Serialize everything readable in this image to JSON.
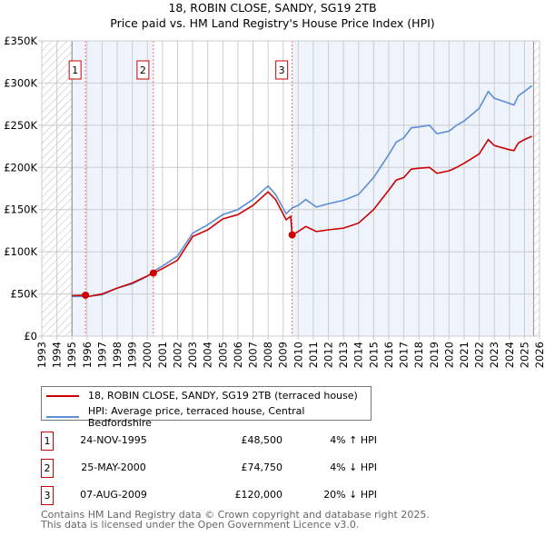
{
  "title": "18, ROBIN CLOSE, SANDY, SG19 2TB",
  "subtitle": "Price paid vs. HM Land Registry's House Price Index (HPI)",
  "chart_data": {
    "type": "line",
    "title": "18, ROBIN CLOSE, SANDY, SG19 2TB",
    "subtitle": "Price paid vs. HM Land Registry's House Price Index (HPI)",
    "xlim": [
      1993,
      2026
    ],
    "ylim": [
      0,
      350000
    ],
    "y_ticks": [
      0,
      50000,
      100000,
      150000,
      200000,
      250000,
      300000,
      350000
    ],
    "y_tick_labels": [
      "£0",
      "£50K",
      "£100K",
      "£150K",
      "£200K",
      "£250K",
      "£300K",
      "£350K"
    ],
    "x_ticks": [
      "1993",
      "1994",
      "1995",
      "1996",
      "1997",
      "1998",
      "1999",
      "2000",
      "2001",
      "2002",
      "2003",
      "2004",
      "2005",
      "2006",
      "2007",
      "2008",
      "2009",
      "2010",
      "2011",
      "2012",
      "2013",
      "2014",
      "2015",
      "2016",
      "2017",
      "2018",
      "2019",
      "2020",
      "2021",
      "2022",
      "2023",
      "2024",
      "2025",
      "2026"
    ],
    "grid": true,
    "legend_placement": "below",
    "shaded_ranges": [
      [
        1995.0,
        2000.4
      ],
      [
        2009.6,
        2025.5
      ]
    ],
    "hatched_ranges": [
      [
        1993,
        1995
      ],
      [
        2025.6,
        2026
      ]
    ],
    "series": [
      {
        "name": "18, ROBIN CLOSE, SANDY, SG19 2TB (terraced house)",
        "color": "#cc0000",
        "x": [
          1995,
          1995.9,
          1996.1,
          1997,
          1998,
          1999,
          2000.4,
          2001,
          2002,
          2003,
          2004,
          2005,
          2006,
          2007,
          2008,
          2008.5,
          2009.2,
          2009.5,
          2009.6,
          2010,
          2010.5,
          2011.2,
          2012,
          2013,
          2014,
          2015,
          2016,
          2016.5,
          2017,
          2017.5,
          2018,
          2018.7,
          2019.2,
          2020,
          2020.5,
          2021,
          2022,
          2022.6,
          2023,
          2024,
          2024.3,
          2024.6,
          2025,
          2025.5
        ],
        "y": [
          48000,
          48500,
          47000,
          50000,
          57000,
          63000,
          74750,
          80000,
          90000,
          118000,
          126000,
          139000,
          144000,
          155000,
          171000,
          162000,
          138000,
          142000,
          120000,
          124000,
          130000,
          124000,
          126000,
          128000,
          134000,
          150000,
          173000,
          185000,
          188000,
          198000,
          199000,
          200000,
          193000,
          196000,
          200000,
          205000,
          216000,
          233000,
          226000,
          221000,
          220000,
          229000,
          233000,
          237000
        ]
      },
      {
        "name": "HPI: Average price, terraced house, Central Bedfordshire",
        "color": "#5b8ed6",
        "x": [
          1995,
          1996,
          1997,
          1998,
          1999,
          2000,
          2000.5,
          2001,
          2002,
          2003,
          2004,
          2005,
          2006,
          2007,
          2008,
          2008.5,
          2009.2,
          2009.6,
          2010,
          2010.5,
          2011.2,
          2012,
          2013,
          2014,
          2015,
          2016,
          2016.5,
          2017,
          2017.5,
          2018,
          2018.7,
          2019.2,
          2020,
          2020.5,
          2021,
          2022,
          2022.6,
          2023,
          2024,
          2024.3,
          2024.6,
          2025,
          2025.5
        ],
        "y": [
          47000,
          47000,
          49000,
          57000,
          62000,
          71000,
          78000,
          83000,
          95000,
          122000,
          132000,
          144000,
          150000,
          162000,
          178000,
          168000,
          145000,
          152000,
          155000,
          162000,
          153000,
          157000,
          161000,
          168000,
          188000,
          215000,
          230000,
          235000,
          247000,
          248000,
          250000,
          240000,
          243000,
          250000,
          255000,
          270000,
          290000,
          282000,
          276000,
          274000,
          285000,
          290000,
          297000
        ]
      }
    ],
    "sales": [
      {
        "label": "1",
        "x": 1995.9,
        "y": 48500
      },
      {
        "label": "2",
        "x": 2000.4,
        "y": 74750
      },
      {
        "label": "3",
        "x": 2009.6,
        "y": 120000
      }
    ]
  },
  "legend": [
    {
      "label": "18, ROBIN CLOSE, SANDY, SG19 2TB (terraced house)",
      "color": "#cc0000"
    },
    {
      "label": "HPI: Average price, terraced house, Central Bedfordshire",
      "color": "#5b8ed6"
    }
  ],
  "transactions": [
    {
      "num": "1",
      "date": "24-NOV-1995",
      "price": "£48,500",
      "hpi": "4% ↑ HPI"
    },
    {
      "num": "2",
      "date": "25-MAY-2000",
      "price": "£74,750",
      "hpi": "4% ↓ HPI"
    },
    {
      "num": "3",
      "date": "07-AUG-2009",
      "price": "£120,000",
      "hpi": "20% ↓ HPI"
    }
  ],
  "footer": [
    "Contains HM Land Registry data © Crown copyright and database right 2025.",
    "This data is licensed under the Open Government Licence v3.0."
  ]
}
